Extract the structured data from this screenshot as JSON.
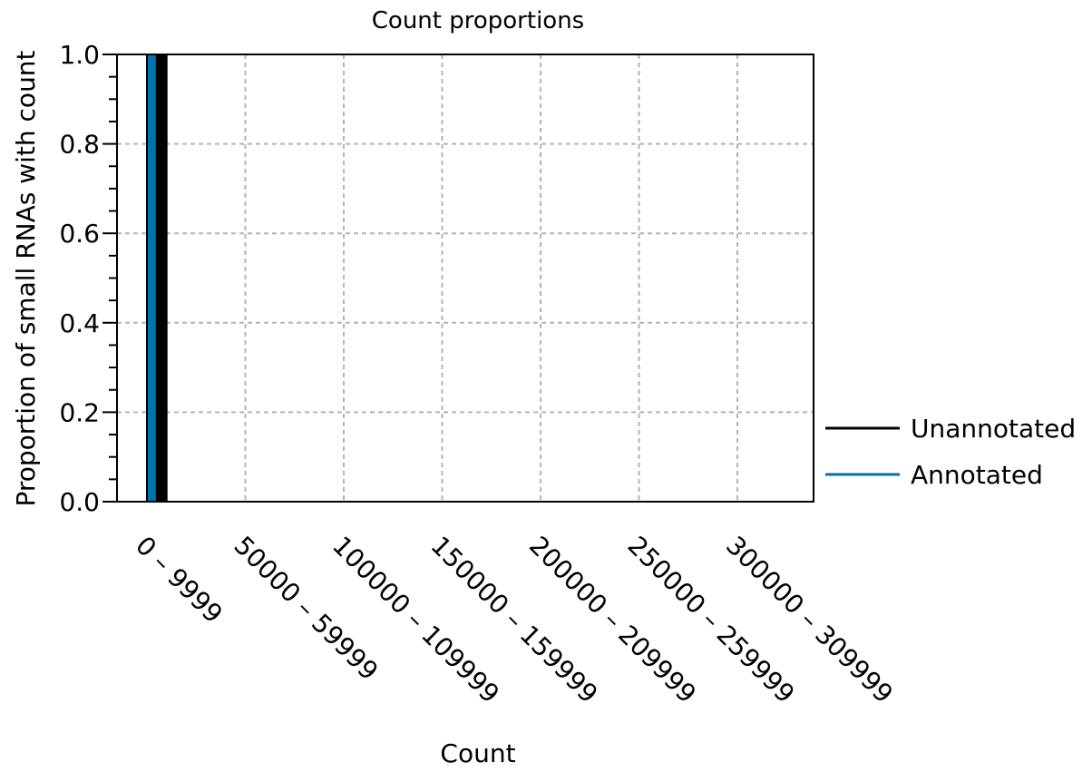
{
  "chart_data": {
    "type": "bar",
    "title": "Count proportions",
    "xlabel": "Count",
    "ylabel": "Proportion of small RNAs with count",
    "categories": [
      "0 – 9999",
      "50000 – 59999",
      "100000 – 109999",
      "150000 – 159999",
      "200000 – 209999",
      "250000 – 259999",
      "300000 – 309999"
    ],
    "x_range": [
      0,
      340000
    ],
    "bin_width": 10000,
    "ylim": [
      0,
      1.0
    ],
    "yticks": [
      0.0,
      0.2,
      0.4,
      0.6,
      0.8,
      1.0
    ],
    "yticklabels": [
      "0.0",
      "0.2",
      "0.4",
      "0.6",
      "0.8",
      "1.0"
    ],
    "grid": true,
    "legend_position": "right",
    "series": [
      {
        "name": "Unannotated",
        "color": "#000000",
        "bins": [
          {
            "range": "0 – 9999",
            "value": 1.0
          }
        ]
      },
      {
        "name": "Annotated",
        "color": "#0072b2",
        "bins": [
          {
            "range": "0 – 9999",
            "value": 1.0
          }
        ]
      }
    ]
  }
}
